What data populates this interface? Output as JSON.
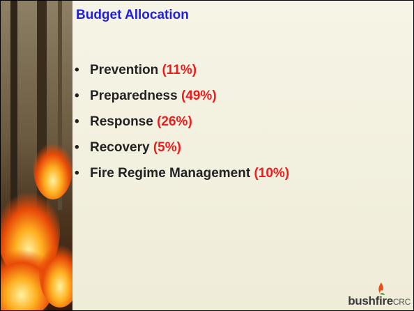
{
  "header": {
    "title": "Budget Allocation"
  },
  "items": [
    {
      "label": "Prevention",
      "share": "(11%)"
    },
    {
      "label": "Preparedness",
      "share": "(49%)"
    },
    {
      "label": "Response",
      "share": "(26%)"
    },
    {
      "label": "Recovery",
      "share": "(5%)"
    },
    {
      "label": "Fire Regime Management",
      "share": "(10%)"
    }
  ],
  "logo": {
    "name": "bushfire",
    "suffix": "CRC"
  }
}
